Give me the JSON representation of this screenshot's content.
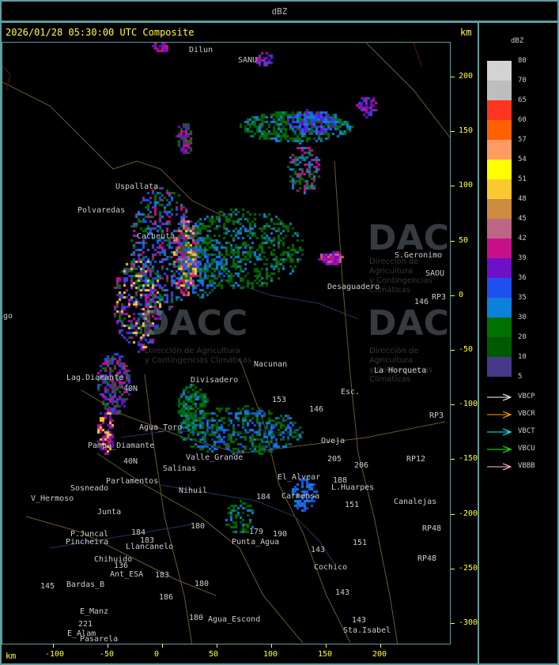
{
  "header": {
    "title": "dBZ"
  },
  "map": {
    "timestamp": "2026/01/28 05:30:00 UTC Composite",
    "unit_top": "km",
    "unit_bottom": "km",
    "x_ticks": [
      "-100",
      "-50",
      "0",
      "50",
      "100",
      "150",
      "200"
    ],
    "y_ticks": [
      "200",
      "150",
      "100",
      "50",
      "0",
      "-50",
      "-100",
      "-150",
      "-200",
      "-250",
      "-300"
    ],
    "watermark": {
      "logo": "DACC",
      "line1": "Dirección de Agricultura",
      "line2": "y Contingencias Climáticas"
    },
    "places": [
      "Dilun",
      "SANU",
      "Uspallata",
      "Polvaredas",
      "S.Geronimo",
      "SAOU",
      "Desaguadero",
      "RP3",
      "146",
      "Nacunan",
      "La Horqueta",
      "Lag.Diamante",
      "Divisadero",
      "Esc.",
      "153",
      "146",
      "RP3",
      "Agua_Toro",
      "Pampa_Diamante",
      "Oveja",
      "205",
      "206",
      "RP12",
      "Salinas",
      "Parlamentos",
      "Sosneado",
      "El_Alvear",
      "188",
      "L.Huarpes",
      "V_Hermoso",
      "Canalejas",
      "151",
      "Carmensa",
      "184",
      "Nihuil",
      "Junta",
      "P.Juncal",
      "Pincheira",
      "Llancanelo",
      "Punta_Agua",
      "179",
      "190",
      "RP48",
      "RP48",
      "Chihuido",
      "143",
      "151",
      "136",
      "Ant_ESA",
      "183",
      "Cochico",
      "Bardas_B",
      "145",
      "180",
      "143",
      "186",
      "E_Manz",
      "221",
      "E_Alam",
      "Pasarela",
      "180",
      "Agua_Escond",
      "143",
      "Sta.Isabel",
      "Valle_Grande",
      "40N",
      "40N",
      "180",
      "184",
      "183",
      "ago",
      "Cacheuta"
    ]
  },
  "legend": {
    "title": "dBZ",
    "scale": [
      {
        "label": "80",
        "color": "#d3d3d3"
      },
      {
        "label": "70",
        "color": "#bebebe"
      },
      {
        "label": "65",
        "color": "#ff3520"
      },
      {
        "label": "60",
        "color": "#ff6000"
      },
      {
        "label": "57",
        "color": "#ff9a60"
      },
      {
        "label": "54",
        "color": "#ffff00"
      },
      {
        "label": "51",
        "color": "#fcc832"
      },
      {
        "label": "48",
        "color": "#cd8b40"
      },
      {
        "label": "45",
        "color": "#bc6585"
      },
      {
        "label": "42",
        "color": "#c8108c"
      },
      {
        "label": "39",
        "color": "#6e10c8"
      },
      {
        "label": "36",
        "color": "#1e50f0"
      },
      {
        "label": "35",
        "color": "#0a82dc"
      },
      {
        "label": "30",
        "color": "#007000"
      },
      {
        "label": "20",
        "color": "#005a00"
      },
      {
        "label": "10",
        "color": "#46388a"
      }
    ],
    "min_label": "5",
    "radars": [
      {
        "name": "VBCP",
        "color": "#ffffff"
      },
      {
        "name": "VBCR",
        "color": "#ffa500"
      },
      {
        "name": "VBCT",
        "color": "#00ffff"
      },
      {
        "name": "VBCU",
        "color": "#00ff00"
      },
      {
        "name": "VBBB",
        "color": "#ffc0cb"
      }
    ]
  }
}
